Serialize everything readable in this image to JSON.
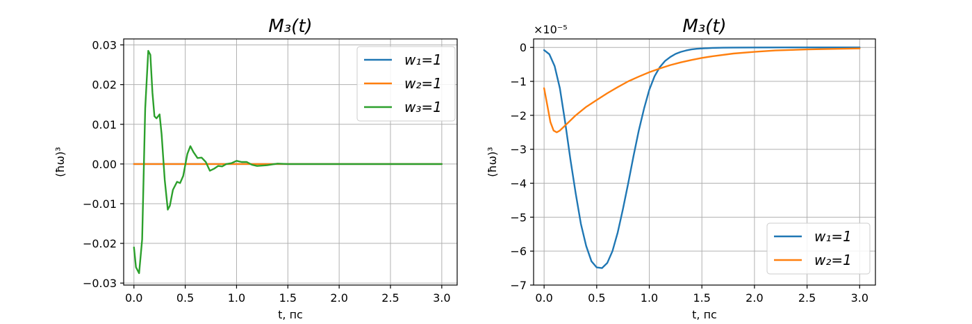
{
  "chart_data": [
    {
      "type": "line",
      "title": "M₃(t)",
      "xlabel": "t, пс",
      "ylabel": "(ħω)³",
      "xlim": [
        -0.1,
        3.15
      ],
      "ylim": [
        -0.0305,
        0.0315
      ],
      "xticks": [
        0.0,
        0.5,
        1.0,
        1.5,
        2.0,
        2.5,
        3.0
      ],
      "xtick_labels": [
        "0.0",
        "0.5",
        "1.0",
        "1.5",
        "2.0",
        "2.5",
        "3.0"
      ],
      "yticks": [
        -0.03,
        -0.02,
        -0.01,
        0.0,
        0.01,
        0.02,
        0.03
      ],
      "ytick_labels": [
        "−0.03",
        "−0.02",
        "−0.01",
        "0.00",
        "0.01",
        "0.02",
        "0.03"
      ],
      "grid": true,
      "legend_position": "top-right",
      "series": [
        {
          "name": "w₁=1",
          "color": "#1f77b4",
          "x": [
            0.0,
            3.0
          ],
          "y": [
            0.0,
            0.0
          ]
        },
        {
          "name": "w₂=1",
          "color": "#ff7f0e",
          "x": [
            0.0,
            3.0
          ],
          "y": [
            0.0,
            0.0
          ]
        },
        {
          "name": "w₃=1",
          "color": "#2ca02c",
          "x": [
            0.0,
            0.02,
            0.05,
            0.08,
            0.11,
            0.14,
            0.16,
            0.18,
            0.2,
            0.22,
            0.25,
            0.27,
            0.3,
            0.33,
            0.35,
            0.38,
            0.42,
            0.45,
            0.48,
            0.52,
            0.55,
            0.58,
            0.62,
            0.66,
            0.7,
            0.74,
            0.78,
            0.82,
            0.86,
            0.9,
            0.95,
            1.0,
            1.05,
            1.1,
            1.15,
            1.2,
            1.3,
            1.4,
            1.5,
            1.7,
            2.0,
            2.5,
            3.0
          ],
          "y": [
            -0.021,
            -0.026,
            -0.0275,
            -0.019,
            0.014,
            0.0285,
            0.0275,
            0.018,
            0.012,
            0.0115,
            0.0125,
            0.0075,
            -0.004,
            -0.0115,
            -0.0105,
            -0.0065,
            -0.0045,
            -0.0048,
            -0.003,
            0.0025,
            0.0045,
            0.003,
            0.0015,
            0.0016,
            0.0005,
            -0.0017,
            -0.0012,
            -0.0005,
            -0.0006,
            0.0,
            0.0002,
            0.0008,
            0.0005,
            0.0005,
            -0.0002,
            -0.0005,
            -0.0003,
            0.0001,
            0.0,
            0.0,
            0.0,
            0.0,
            0.0
          ]
        }
      ]
    },
    {
      "type": "line",
      "title": "M₃(t)",
      "xlabel": "t, пс",
      "ylabel": "(ħω)³",
      "offset_text": "×10⁻⁵",
      "xlim": [
        -0.1,
        3.15
      ],
      "ylim": [
        -7.0,
        0.25
      ],
      "xticks": [
        0.0,
        0.5,
        1.0,
        1.5,
        2.0,
        2.5,
        3.0
      ],
      "xtick_labels": [
        "0.0",
        "0.5",
        "1.0",
        "1.5",
        "2.0",
        "2.5",
        "3.0"
      ],
      "yticks": [
        -7,
        -6,
        -5,
        -4,
        -3,
        -2,
        -1,
        0
      ],
      "ytick_labels": [
        "−7",
        "−6",
        "−5",
        "−4",
        "−3",
        "−2",
        "−1",
        "0"
      ],
      "grid": true,
      "legend_position": "bottom-right",
      "series": [
        {
          "name": "w₁=1",
          "color": "#1f77b4",
          "x": [
            0.0,
            0.05,
            0.1,
            0.15,
            0.2,
            0.25,
            0.3,
            0.35,
            0.4,
            0.45,
            0.5,
            0.55,
            0.6,
            0.65,
            0.7,
            0.75,
            0.8,
            0.85,
            0.9,
            0.95,
            1.0,
            1.05,
            1.1,
            1.15,
            1.2,
            1.25,
            1.3,
            1.35,
            1.4,
            1.45,
            1.5,
            1.6,
            1.7,
            1.8,
            2.0,
            2.5,
            3.0
          ],
          "y": [
            -0.08,
            -0.2,
            -0.55,
            -1.2,
            -2.2,
            -3.3,
            -4.3,
            -5.2,
            -5.85,
            -6.3,
            -6.48,
            -6.5,
            -6.35,
            -6.0,
            -5.45,
            -4.75,
            -4.0,
            -3.2,
            -2.45,
            -1.8,
            -1.25,
            -0.85,
            -0.58,
            -0.4,
            -0.28,
            -0.19,
            -0.13,
            -0.09,
            -0.06,
            -0.04,
            -0.03,
            -0.015,
            -0.008,
            -0.004,
            -0.002,
            0.0,
            0.0
          ]
        },
        {
          "name": "w₂=1",
          "color": "#ff7f0e",
          "x": [
            0.0,
            0.03,
            0.06,
            0.09,
            0.12,
            0.15,
            0.2,
            0.25,
            0.3,
            0.4,
            0.5,
            0.6,
            0.7,
            0.8,
            0.9,
            1.0,
            1.1,
            1.2,
            1.3,
            1.4,
            1.5,
            1.6,
            1.8,
            2.0,
            2.2,
            2.5,
            2.8,
            3.0
          ],
          "y": [
            -1.2,
            -1.7,
            -2.2,
            -2.45,
            -2.5,
            -2.45,
            -2.3,
            -2.15,
            -2.0,
            -1.75,
            -1.55,
            -1.35,
            -1.17,
            -1.0,
            -0.86,
            -0.73,
            -0.62,
            -0.52,
            -0.44,
            -0.37,
            -0.31,
            -0.26,
            -0.18,
            -0.13,
            -0.09,
            -0.06,
            -0.04,
            -0.03
          ]
        }
      ]
    }
  ]
}
